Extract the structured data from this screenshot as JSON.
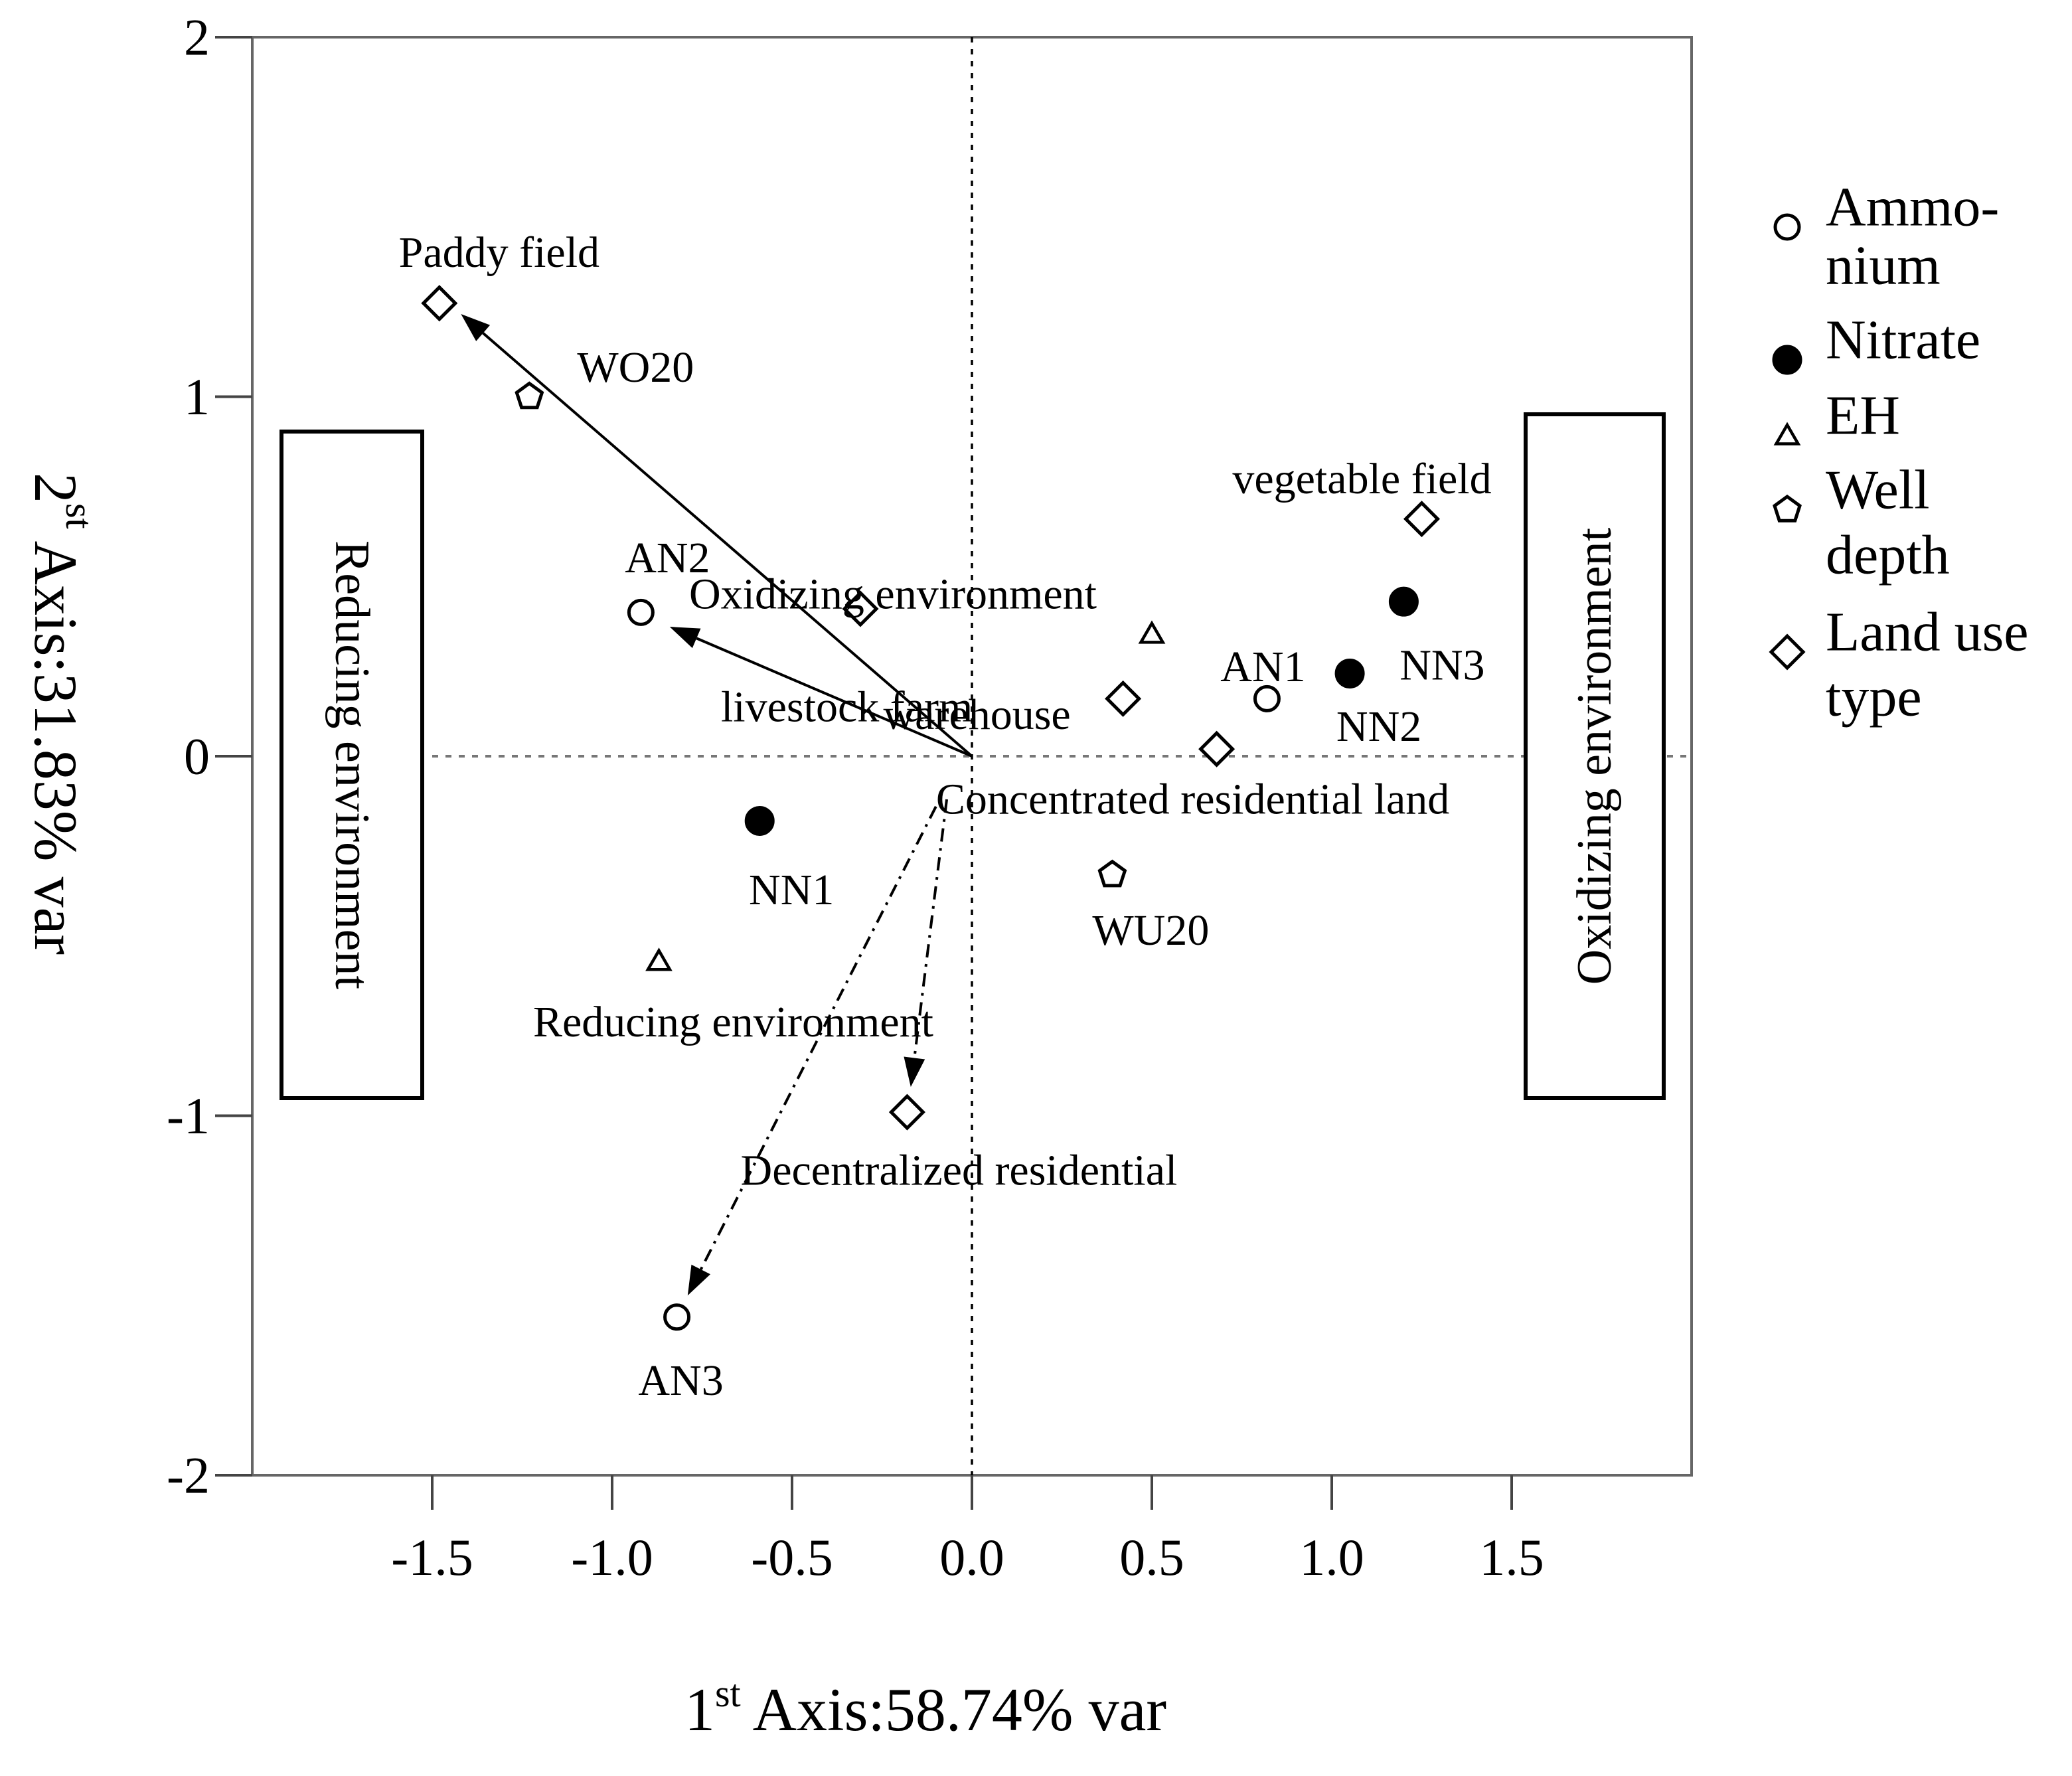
{
  "chart_data": {
    "type": "scatter",
    "title": "",
    "xlabel": {
      "ordinal": "1",
      "sup": "st",
      "text": " Axis:58.74% var"
    },
    "ylabel": {
      "ordinal": "2",
      "sup": "st",
      "text": " Axis:31.83% var"
    },
    "xlim": [
      -2.0,
      2.0
    ],
    "ylim": [
      -2.0,
      2.0
    ],
    "xticks": [
      {
        "value": -1.5,
        "label": "-1.5"
      },
      {
        "value": -1.0,
        "label": "-1.0"
      },
      {
        "value": -0.5,
        "label": "-0.5"
      },
      {
        "value": 0.0,
        "label": "0.0"
      },
      {
        "value": 0.5,
        "label": "0.5"
      },
      {
        "value": 1.0,
        "label": "1.0"
      },
      {
        "value": 1.5,
        "label": "1.5"
      }
    ],
    "yticks": [
      {
        "value": 2,
        "label": "2"
      },
      {
        "value": 1,
        "label": "1"
      },
      {
        "value": 0,
        "label": "0"
      },
      {
        "value": -1,
        "label": "-1"
      },
      {
        "value": -2,
        "label": "-2"
      }
    ],
    "legend": [
      {
        "key": "ammonium",
        "marker": "circle-open",
        "lines": [
          "Ammo-",
          "nium"
        ]
      },
      {
        "key": "nitrate",
        "marker": "circle-filled",
        "lines": [
          "Nitrate"
        ]
      },
      {
        "key": "eh",
        "marker": "triangle",
        "lines": [
          "EH"
        ]
      },
      {
        "key": "well",
        "marker": "pentagon",
        "lines": [
          "Well",
          "depth"
        ]
      },
      {
        "key": "landuse",
        "marker": "diamond",
        "lines": [
          "Land use",
          "type"
        ]
      }
    ],
    "points": [
      {
        "group": "landuse",
        "label": "Paddy field",
        "x": -1.48,
        "y": 1.26
      },
      {
        "group": "well",
        "label": "WO20",
        "x": -1.23,
        "y": 1.0
      },
      {
        "group": "landuse",
        "label": "vegetable field",
        "x": 1.25,
        "y": 0.66
      },
      {
        "group": "ammonium",
        "label": "AN2",
        "x": -0.92,
        "y": 0.4
      },
      {
        "group": "landuse",
        "label": "livestock farm",
        "x": -0.31,
        "y": 0.41
      },
      {
        "group": "eh",
        "label": "Oxidizing environment",
        "x": 0.5,
        "y": 0.34
      },
      {
        "group": "nitrate",
        "label": "NN3",
        "x": 1.2,
        "y": 0.43
      },
      {
        "group": "ammonium",
        "label": "AN1",
        "x": 0.82,
        "y": 0.16
      },
      {
        "group": "nitrate",
        "label": "NN2",
        "x": 1.05,
        "y": 0.23
      },
      {
        "group": "landuse",
        "label": "warehouse",
        "x": 0.42,
        "y": 0.16
      },
      {
        "group": "landuse",
        "label": "Concentrated residential land",
        "x": 0.68,
        "y": 0.02
      },
      {
        "group": "nitrate",
        "label": "NN1",
        "x": -0.59,
        "y": -0.18
      },
      {
        "group": "well",
        "label": "WU20",
        "x": 0.39,
        "y": -0.33
      },
      {
        "group": "eh",
        "label": "Reducing environment",
        "x": -0.87,
        "y": -0.57
      },
      {
        "group": "landuse",
        "label": "Decentralized residential",
        "x": -0.18,
        "y": -0.99
      },
      {
        "group": "ammonium",
        "label": "AN3",
        "x": -0.82,
        "y": -1.56
      }
    ],
    "arrows": [
      {
        "name": "arrow-to-paddy-field",
        "style": "solid",
        "from": [
          0.0,
          0.0
        ],
        "to": [
          -1.42,
          1.23
        ]
      },
      {
        "name": "arrow-to-an2",
        "style": "solid",
        "from": [
          0.0,
          0.0
        ],
        "to": [
          -0.84,
          0.36
        ]
      },
      {
        "name": "arrow-to-decentralized-residential",
        "style": "dashdot",
        "from": [
          -0.07,
          -0.12
        ],
        "to": [
          -0.17,
          -0.92
        ]
      },
      {
        "name": "arrow-to-an3",
        "style": "dashdot",
        "from": [
          -0.1,
          -0.14
        ],
        "to": [
          -0.79,
          -1.5
        ]
      }
    ],
    "region_labels": [
      {
        "name": "reducing-environment-box",
        "text": "Reducing environment",
        "side": "left"
      },
      {
        "name": "oxidizing-environment-box",
        "text": "Oxidizing environment",
        "side": "right"
      }
    ],
    "reference_lines": {
      "x_zero": "dotted",
      "y_zero": "dotted"
    }
  }
}
